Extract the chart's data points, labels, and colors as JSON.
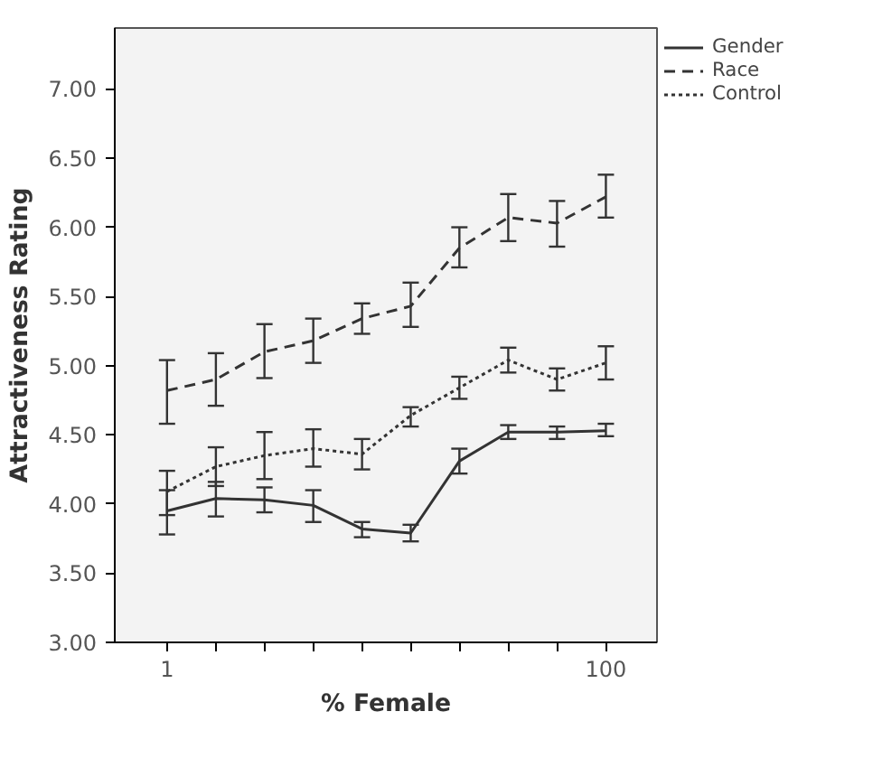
{
  "chart_data": {
    "type": "line",
    "xlabel": "% Female",
    "ylabel": "Attractiveness Rating",
    "log": "x",
    "x": [
      1,
      1.67,
      2.78,
      4.64,
      7.74,
      12.9,
      21.5,
      35.9,
      59.9,
      100
    ],
    "series": [
      {
        "name": "Gender",
        "color": "#333333",
        "line_style": "solid",
        "values": [
          3.95,
          4.04,
          4.03,
          3.99,
          3.82,
          3.79,
          4.31,
          4.52,
          4.52,
          4.53
        ],
        "errors": [
          [
            3.78,
            4.1
          ],
          [
            3.91,
            4.16
          ],
          [
            3.94,
            4.12
          ],
          [
            3.87,
            4.1
          ],
          [
            3.76,
            3.87
          ],
          [
            3.73,
            3.85
          ],
          [
            4.22,
            4.4
          ],
          [
            4.47,
            4.57
          ],
          [
            4.47,
            4.56
          ],
          [
            4.49,
            4.58
          ]
        ]
      },
      {
        "name": "Race",
        "color": "#333333",
        "line_style": "dashed",
        "values": [
          4.82,
          4.9,
          5.1,
          5.18,
          5.34,
          5.43,
          5.85,
          6.07,
          6.03,
          6.22
        ],
        "errors": [
          [
            4.58,
            5.04
          ],
          [
            4.71,
            5.09
          ],
          [
            4.91,
            5.3
          ],
          [
            5.02,
            5.34
          ],
          [
            5.23,
            5.45
          ],
          [
            5.28,
            5.6
          ],
          [
            5.71,
            6.0
          ],
          [
            5.9,
            6.24
          ],
          [
            5.86,
            6.19
          ],
          [
            6.07,
            6.38
          ]
        ]
      },
      {
        "name": "Control",
        "color": "#333333",
        "line_style": "dotted",
        "values": [
          4.09,
          4.27,
          4.35,
          4.4,
          4.36,
          4.64,
          4.84,
          5.04,
          4.9,
          5.02
        ],
        "errors": [
          [
            3.92,
            4.24
          ],
          [
            4.13,
            4.41
          ],
          [
            4.18,
            4.52
          ],
          [
            4.27,
            4.54
          ],
          [
            4.25,
            4.47
          ],
          [
            4.56,
            4.7
          ],
          [
            4.76,
            4.92
          ],
          [
            4.95,
            5.13
          ],
          [
            4.82,
            4.98
          ],
          [
            4.9,
            5.14
          ]
        ]
      }
    ],
    "xlim": [
      0.578,
      171
    ],
    "ylim": [
      3,
      7.44
    ],
    "xticks": [
      1,
      {
        "value": 1.67,
        "label": null
      },
      {
        "value": 2.78,
        "label": null
      },
      {
        "value": 4.64,
        "label": null
      },
      {
        "value": 7.74,
        "label": null
      },
      {
        "value": 12.9,
        "label": null
      },
      {
        "value": 21.5,
        "label": null
      },
      {
        "value": 35.9,
        "label": null
      },
      {
        "value": 59.9,
        "label": null
      },
      100
    ],
    "yticks": [
      {
        "value": 3,
        "label": "3.00"
      },
      {
        "value": 3.5,
        "label": "3.50"
      },
      {
        "value": 4,
        "label": "4.00"
      },
      {
        "value": 4.5,
        "label": "4.50"
      },
      {
        "value": 5,
        "label": "5.00"
      },
      {
        "value": 5.5,
        "label": "5.50"
      },
      {
        "value": 6,
        "label": "6.00"
      },
      {
        "value": 6.5,
        "label": "6.50"
      },
      {
        "value": 7,
        "label": "7.00"
      }
    ],
    "grid": false,
    "legend": "top right",
    "marker": "none"
  }
}
